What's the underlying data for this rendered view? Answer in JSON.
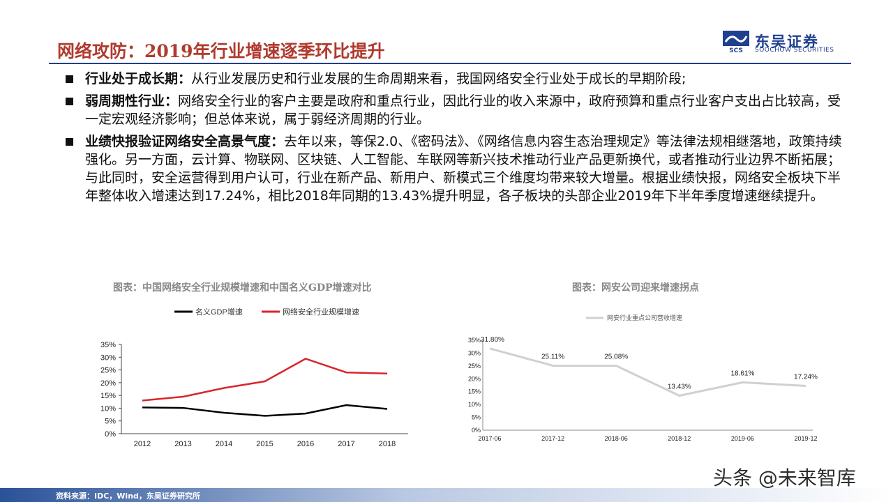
{
  "header": {
    "title": "网络攻防：2019年行业增速逐季环比提升",
    "logo_cn": "东吴证券",
    "logo_en": "SOOCHOW SECURITIES",
    "logo_mark_text": "SCS"
  },
  "bullets": [
    {
      "key": "行业处于成长期：",
      "text": "从行业发展历史和行业发展的生命周期来看，我国网络安全行业处于成长的早期阶段;"
    },
    {
      "key": "弱周期性行业：",
      "text": "网络安全行业的客户主要是政府和重点行业，因此行业的收入来源中，政府预算和重点行业客户支出占比较高，受一定宏观经济影响；但总体来说，属于弱经济周期的行业。"
    },
    {
      "key": "业绩快报验证网络安全高景气度：",
      "text": "去年以来，等保2.0、《密码法》、《网络信息内容生态治理规定》等法律法规相继落地，政策持续强化。另一方面，云计算、物联网、区块链、人工智能、车联网等新兴技术推动行业产品更新换代，或者推动行业边界不断拓展；与此同时，安全运营得到用户认可，行业在新产品、新用户、新模式三个维度均带来较大增量。根据业绩快报，网络安全板块下半年整体收入增速达到17.24%，相比2018年同期的13.43%提升明显，各子板块的头部企业2019年下半年季度增速继续提升。"
    }
  ],
  "chart_data": [
    {
      "type": "line",
      "title": "图表：中国网络安全行业规模增速和中国名义GDP增速对比",
      "categories": [
        "2012",
        "2013",
        "2014",
        "2015",
        "2016",
        "2017",
        "2018"
      ],
      "ylim": [
        0,
        35
      ],
      "y_ticks": [
        "0%",
        "5%",
        "10%",
        "15%",
        "20%",
        "25%",
        "30%",
        "35%"
      ],
      "legend_position": "top",
      "series": [
        {
          "name": "名义GDP增速",
          "color": "#000000",
          "values": [
            10.3,
            10.1,
            8.2,
            7.0,
            7.9,
            11.2,
            9.7
          ]
        },
        {
          "name": "网络安全行业规模增速",
          "color": "#d9262b",
          "values": [
            13.0,
            14.5,
            17.9,
            20.5,
            29.4,
            24.0,
            23.6
          ]
        }
      ]
    },
    {
      "type": "line",
      "title": "图表：网安公司迎来增速拐点",
      "categories": [
        "2017-06",
        "2017-12",
        "2018-06",
        "2018-12",
        "2019-06",
        "2019-12"
      ],
      "ylim": [
        0,
        35
      ],
      "y_ticks": [
        "0%",
        "5%",
        "10%",
        "15%",
        "20%",
        "25%",
        "30%",
        "35%"
      ],
      "legend_position": "top",
      "series": [
        {
          "name": "网安行业重点公司营收增速",
          "color": "#d0d0d0",
          "values": [
            31.8,
            25.11,
            25.08,
            13.43,
            18.61,
            17.24
          ],
          "labels": [
            "31.80%",
            "25.11%",
            "25.08%",
            "13.43%",
            "18.61%",
            "17.24%"
          ]
        }
      ]
    }
  ],
  "footer": {
    "source": "资料来源：IDC，Wind，东吴证券研究所"
  },
  "watermark": "头条 @未来智库"
}
